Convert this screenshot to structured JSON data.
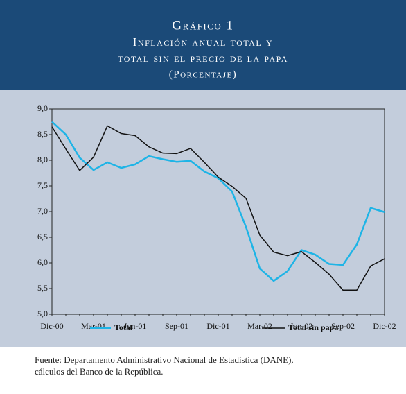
{
  "chart_data": {
    "type": "line",
    "title": "Gráfico 1",
    "subtitle": [
      "Inflación anual total y",
      "total sin el precio de la papa"
    ],
    "unit_label": "(Porcentaje)",
    "categories": [
      "Dic-00",
      null,
      null,
      "Mar-01",
      null,
      null,
      "Jun-01",
      null,
      null,
      "Sep-01",
      null,
      null,
      "Dic-01",
      null,
      null,
      "Mar-02",
      null,
      null,
      "Jun-02",
      null,
      null,
      "Sep-02",
      null,
      null,
      "Dic-02"
    ],
    "series": [
      {
        "name": "Total",
        "color": "#1eb4e6",
        "values": [
          8.75,
          8.5,
          8.05,
          7.81,
          7.96,
          7.85,
          7.92,
          8.08,
          8.02,
          7.97,
          7.99,
          7.78,
          7.65,
          7.39,
          6.7,
          5.89,
          5.65,
          5.84,
          6.25,
          6.16,
          5.98,
          5.96,
          6.36,
          7.07,
          6.99
        ]
      },
      {
        "name": "Total sin papa",
        "color": "#111111",
        "values": [
          8.65,
          8.22,
          7.8,
          8.06,
          8.67,
          8.52,
          8.48,
          8.26,
          8.14,
          8.13,
          8.23,
          7.96,
          7.67,
          7.49,
          7.26,
          6.54,
          6.21,
          6.14,
          6.22,
          6.01,
          5.78,
          5.47,
          5.47,
          5.94,
          6.08
        ]
      }
    ],
    "ylim": [
      5,
      9
    ],
    "yticks": [
      {
        "value": 5,
        "label": "5,0"
      },
      {
        "value": 5.5,
        "label": "5,5"
      },
      {
        "value": 6,
        "label": "6,0"
      },
      {
        "value": 6.5,
        "label": "6,5"
      },
      {
        "value": 7,
        "label": "7,0"
      },
      {
        "value": 7.5,
        "label": "7,5"
      },
      {
        "value": 8,
        "label": "8,0"
      },
      {
        "value": 8.5,
        "label": "8,5"
      },
      {
        "value": 9,
        "label": "9,0"
      }
    ],
    "source": [
      "Fuente: Departamento Administrativo Nacional de Estadística (DANE),",
      "cálculos del Banco de la República."
    ]
  }
}
